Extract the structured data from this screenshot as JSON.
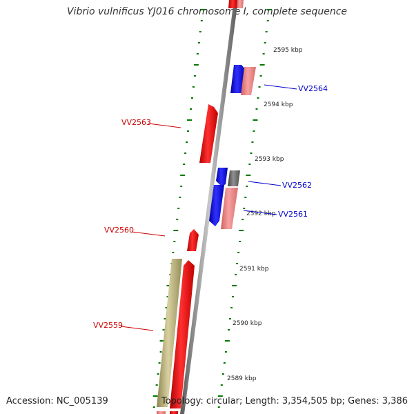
{
  "title": "Vibrio vulnificus YJ016 chromosome I, complete sequence",
  "footer": {
    "accession": "Accession: NC_005139",
    "topology": "Topology: circular; Length: 3,354,505 bp; Genes: 3,386"
  },
  "colors": {
    "plus_strand": "#ff0000",
    "minus_strand": "#0000ff",
    "pink": "#f08080",
    "gray": "#707070",
    "olive": "#b0a870",
    "tick": "#007700",
    "backbone": "#888888"
  },
  "ticks": [
    {
      "label": "2595 kbp"
    },
    {
      "label": "2594 kbp"
    },
    {
      "label": "2593 kbp"
    },
    {
      "label": "2592 kbp"
    },
    {
      "label": "2591 kbp"
    },
    {
      "label": "2590 kbp"
    },
    {
      "label": "2589 kbp"
    }
  ],
  "genes": [
    {
      "label": "VV2564",
      "color": "blue"
    },
    {
      "label": "VV2563",
      "color": "red"
    },
    {
      "label": "VV2562",
      "color": "blue"
    },
    {
      "label": "VV2561",
      "color": "blue"
    },
    {
      "label": "VV2560",
      "color": "red"
    },
    {
      "label": "VV2559",
      "color": "red"
    }
  ]
}
